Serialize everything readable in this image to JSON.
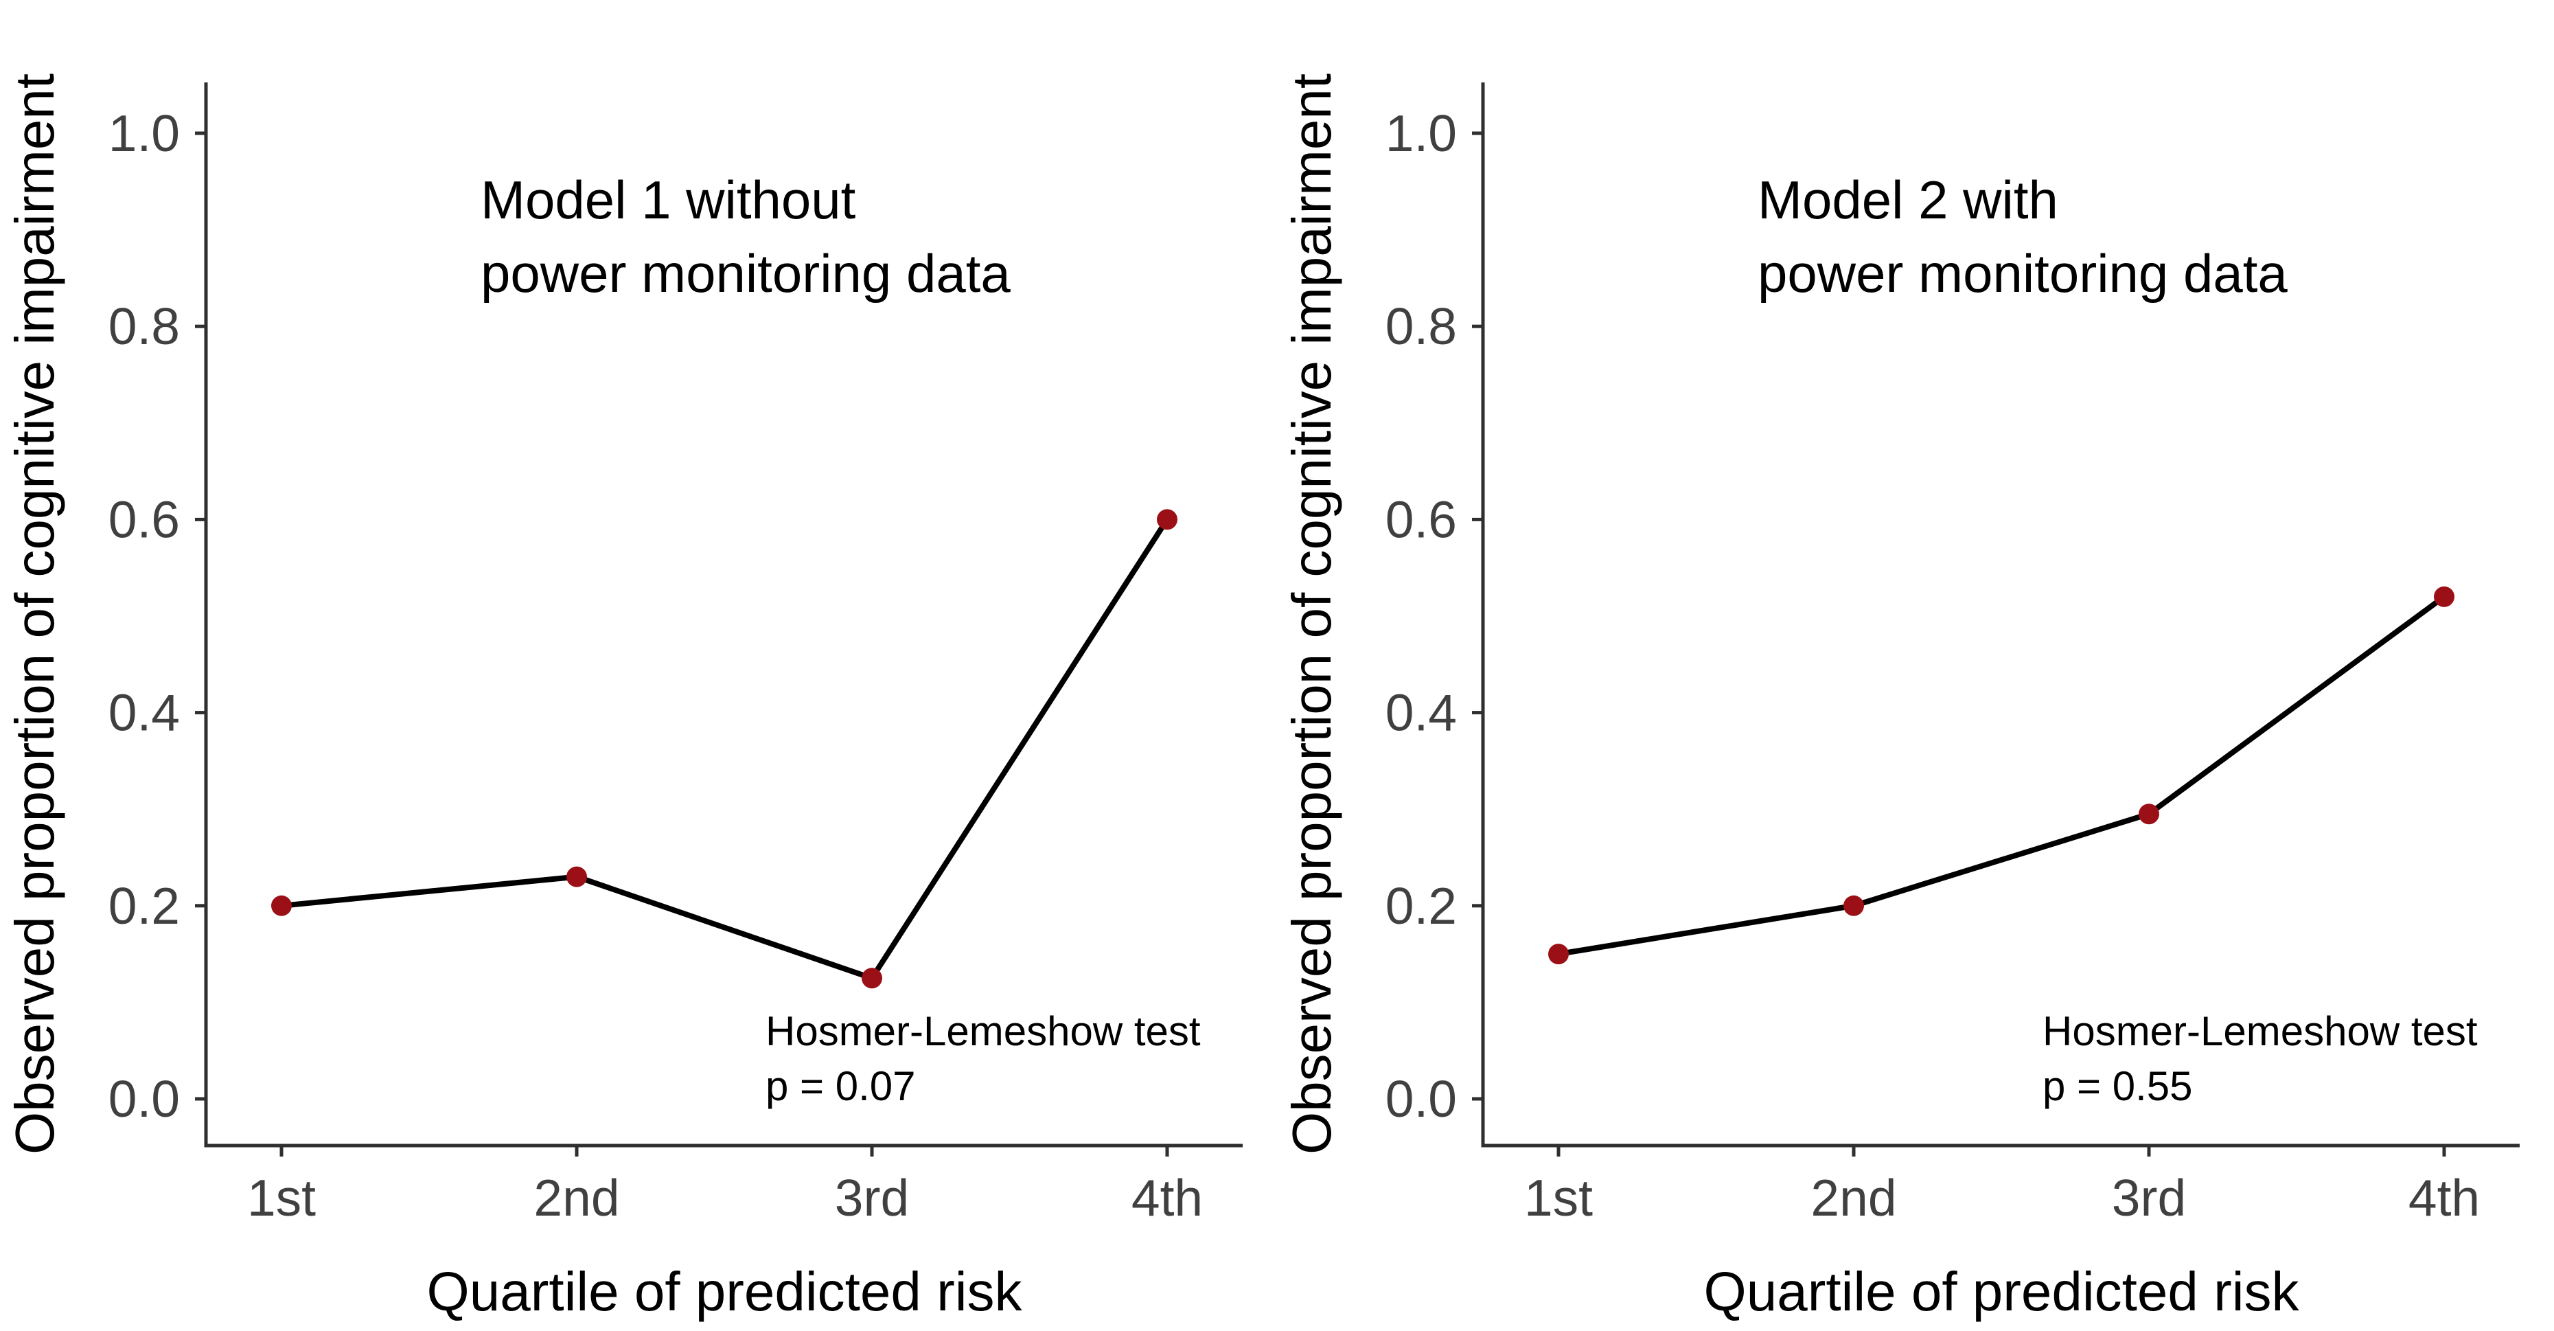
{
  "figure": {
    "background_color": "#ffffff",
    "kind": "two-panel calibration plot"
  },
  "style": {
    "axis_line_color": "#2f2f2f",
    "tick_label_color": "#404040",
    "text_color": "#000000",
    "series_line_color": "#000000",
    "point_color": "#9b1016"
  },
  "chart_data": [
    {
      "type": "line",
      "title_line1": "Model 1 without",
      "title_line2": "power monitoring data",
      "categories": [
        "1st",
        "2nd",
        "3rd",
        "4th"
      ],
      "values": [
        0.2,
        0.23,
        0.125,
        0.6
      ],
      "xlabel": "Quartile of predicted risk",
      "ylabel": "Observed proportion of cognitive impairment",
      "ylim": [
        0.0,
        1.0
      ],
      "yticks": [
        0.0,
        0.2,
        0.4,
        0.6,
        0.8,
        1.0
      ],
      "grid": "off",
      "legend": "none",
      "annotation_line1": "Hosmer-Lemeshow test",
      "annotation_line2": "p = 0.07"
    },
    {
      "type": "line",
      "title_line1": "Model 2 with",
      "title_line2": "power monitoring data",
      "categories": [
        "1st",
        "2nd",
        "3rd",
        "4th"
      ],
      "values": [
        0.15,
        0.2,
        0.295,
        0.52
      ],
      "xlabel": "Quartile of predicted risk",
      "ylabel": "Observed proportion of cognitive impairment",
      "ylim": [
        0.0,
        1.0
      ],
      "yticks": [
        0.0,
        0.2,
        0.4,
        0.6,
        0.8,
        1.0
      ],
      "grid": "off",
      "legend": "none",
      "annotation_line1": "Hosmer-Lemeshow test",
      "annotation_line2": "p = 0.55"
    }
  ]
}
